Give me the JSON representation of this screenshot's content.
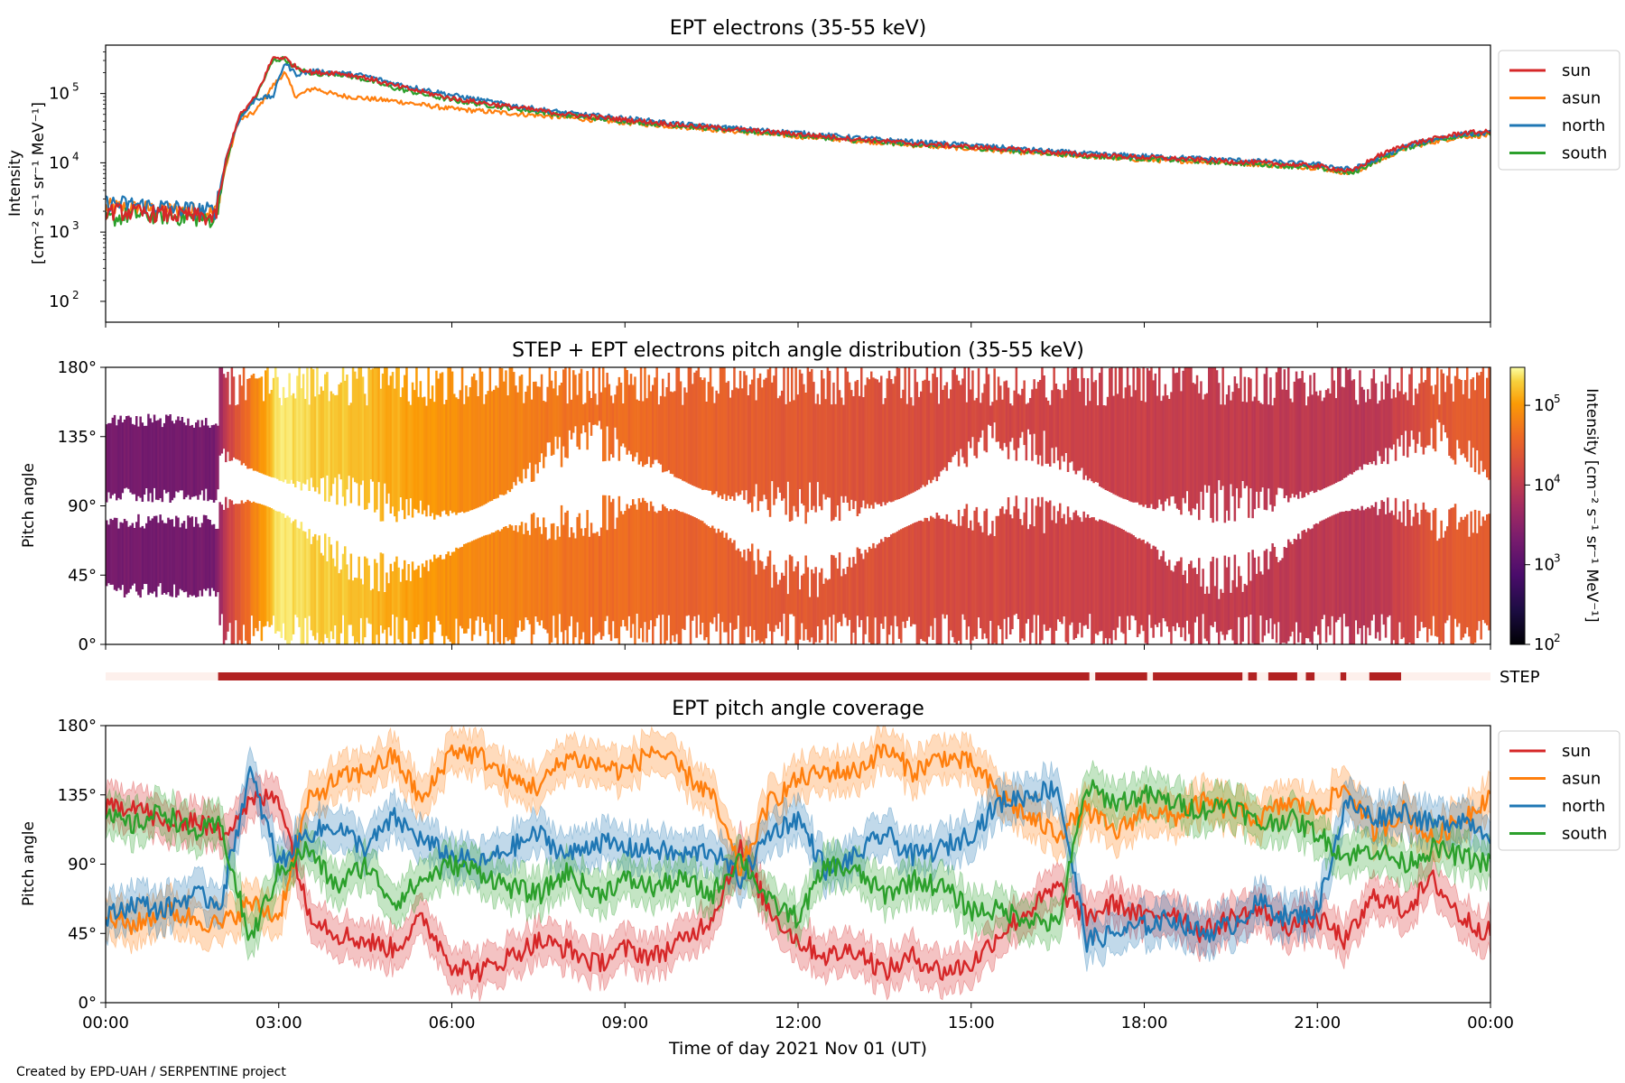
{
  "figure": {
    "credit": "Created by EPD-UAH / SERPENTINE project",
    "xlabel": "Time of day 2021 Nov 01 (UT)",
    "xticks": [
      "00:00",
      "03:00",
      "06:00",
      "09:00",
      "12:00",
      "15:00",
      "18:00",
      "21:00",
      "00:00"
    ]
  },
  "chart_data": [
    {
      "type": "line",
      "title": "EPT electrons (35-55 keV)",
      "ylabel_line1": "Intensity",
      "ylabel_line2": "[cm⁻² s⁻¹ sr⁻¹ MeV⁻¹]",
      "yscale": "log",
      "ylim": [
        50,
        500000
      ],
      "yticks": [
        {
          "value": 100,
          "base": "10",
          "exp": "2"
        },
        {
          "value": 1000,
          "base": "10",
          "exp": "3"
        },
        {
          "value": 10000,
          "base": "10",
          "exp": "4"
        },
        {
          "value": 100000,
          "base": "10",
          "exp": "5"
        }
      ],
      "xlim_hours": [
        0,
        24
      ],
      "legend_position": "outside-right-top",
      "series": [
        {
          "name": "sun",
          "color": "#d62728",
          "x": [
            0,
            0.5,
            1.0,
            1.5,
            1.9,
            2.1,
            2.3,
            2.6,
            2.9,
            3.1,
            3.3,
            3.6,
            4.0,
            4.5,
            5,
            6,
            7,
            8,
            9,
            10,
            11,
            12,
            13,
            14,
            15,
            16,
            17,
            18,
            19,
            20,
            21,
            21.6,
            22.0,
            22.5,
            23.0,
            23.5,
            24
          ],
          "y": [
            2000,
            1900,
            1800,
            1700,
            1600,
            12000,
            45000,
            90000,
            330000,
            330000,
            240000,
            200000,
            200000,
            170000,
            130000,
            85000,
            65000,
            50000,
            42000,
            35000,
            30000,
            26000,
            22000,
            19000,
            17000,
            15000,
            13000,
            12000,
            11000,
            10000,
            9000,
            7500,
            12000,
            18000,
            22000,
            27000,
            28000
          ]
        },
        {
          "name": "asun",
          "color": "#ff7f0e",
          "x": [
            0,
            0.5,
            1.0,
            1.5,
            1.9,
            2.1,
            2.3,
            2.6,
            2.9,
            3.1,
            3.3,
            3.6,
            4.0,
            4.5,
            5,
            6,
            7,
            8,
            9,
            10,
            11,
            12,
            13,
            14,
            15,
            16,
            17,
            18,
            19,
            20,
            21,
            21.6,
            22.0,
            22.5,
            23.0,
            23.5,
            24
          ],
          "y": [
            2300,
            2200,
            2100,
            2000,
            1900,
            10000,
            40000,
            55000,
            130000,
            200000,
            90000,
            120000,
            95000,
            85000,
            78000,
            60000,
            52000,
            45000,
            38000,
            33000,
            28000,
            24000,
            21000,
            18000,
            16000,
            14000,
            12500,
            11000,
            10500,
            9500,
            8500,
            7000,
            10000,
            16000,
            20000,
            24000,
            25000
          ]
        },
        {
          "name": "north",
          "color": "#1f77b4",
          "x": [
            0,
            0.5,
            1.0,
            1.5,
            1.9,
            2.1,
            2.3,
            2.6,
            2.9,
            3.1,
            3.3,
            3.6,
            4.0,
            4.5,
            5,
            6,
            7,
            8,
            9,
            10,
            11,
            12,
            13,
            14,
            15,
            16,
            17,
            18,
            19,
            20,
            21,
            21.6,
            22.0,
            22.5,
            23.0,
            23.5,
            24
          ],
          "y": [
            2600,
            2500,
            2300,
            2100,
            2000,
            13000,
            40000,
            85000,
            90000,
            280000,
            190000,
            210000,
            200000,
            180000,
            140000,
            95000,
            68000,
            52000,
            44000,
            36000,
            31000,
            27000,
            23000,
            20000,
            18000,
            15500,
            13500,
            12500,
            11500,
            10500,
            9500,
            8000,
            11000,
            17000,
            22000,
            26000,
            27000
          ]
        },
        {
          "name": "south",
          "color": "#2ca02c",
          "x": [
            0,
            0.5,
            1.0,
            1.5,
            1.9,
            2.1,
            2.3,
            2.6,
            2.9,
            3.1,
            3.3,
            3.6,
            4.0,
            4.5,
            5,
            6,
            7,
            8,
            9,
            10,
            11,
            12,
            13,
            14,
            15,
            16,
            17,
            18,
            19,
            20,
            21,
            21.6,
            22.0,
            22.5,
            23.0,
            23.5,
            24
          ],
          "y": [
            1500,
            1800,
            1700,
            1600,
            1500,
            11000,
            42000,
            88000,
            300000,
            320000,
            230000,
            190000,
            195000,
            160000,
            120000,
            80000,
            62000,
            48000,
            40000,
            34000,
            29000,
            25000,
            21000,
            18500,
            16500,
            14500,
            12500,
            11500,
            10500,
            9500,
            8500,
            7000,
            10500,
            16000,
            21000,
            25000,
            26000
          ]
        }
      ]
    },
    {
      "type": "heatmap",
      "title": "STEP + EPT electrons pitch angle distribution (35-55 keV)",
      "ylabel": "Pitch angle",
      "ylim": [
        0,
        180
      ],
      "yticks": [
        "0°",
        "45°",
        "90°",
        "135°",
        "180°"
      ],
      "xlim_hours": [
        0,
        24
      ],
      "colormap": "inferno",
      "colorbar": {
        "label": "Intensity [cm⁻² s⁻¹ sr⁻¹ MeV⁻¹]",
        "scale": "log",
        "range": [
          100,
          300000
        ],
        "ticks": [
          {
            "value": 100,
            "base": "10",
            "exp": "2"
          },
          {
            "value": 1000,
            "base": "10",
            "exp": "3"
          },
          {
            "value": 10000,
            "base": "10",
            "exp": "4"
          },
          {
            "value": 100000,
            "base": "10",
            "exp": "5"
          }
        ]
      },
      "intensity_profile": {
        "x": [
          0,
          1.9,
          2.1,
          2.5,
          3.0,
          3.5,
          4.0,
          5,
          6,
          7,
          8,
          9,
          10,
          11,
          12,
          13,
          14,
          15,
          16,
          17,
          18,
          19,
          20,
          21,
          22,
          23,
          24
        ],
        "y": [
          2000,
          1900,
          12000,
          50000,
          250000,
          200000,
          180000,
          130000,
          85000,
          65000,
          50000,
          42000,
          35000,
          30000,
          26000,
          22000,
          19000,
          17000,
          15000,
          13000,
          12000,
          11000,
          10000,
          9000,
          8000,
          25000,
          28000
        ]
      },
      "ept_only_interval_hours": [
        0,
        1.95
      ],
      "ept_only_bands_deg": [
        [
          35,
          80
        ],
        [
          97,
          145
        ]
      ]
    },
    {
      "type": "bar",
      "label": "STEP",
      "description_color": "#b22222",
      "empty_color": "#fdf0ec",
      "xlim_hours": [
        0,
        24
      ],
      "coverage_intervals_hours": [
        [
          1.95,
          17.05
        ],
        [
          17.15,
          18.05
        ],
        [
          18.15,
          19.7
        ],
        [
          19.8,
          19.95
        ],
        [
          20.15,
          20.65
        ],
        [
          20.8,
          20.95
        ],
        [
          21.4,
          21.5
        ],
        [
          21.9,
          22.45
        ],
        [
          24.0,
          24.0
        ]
      ]
    },
    {
      "type": "line",
      "title": "EPT pitch angle coverage",
      "ylabel": "Pitch angle",
      "ylim": [
        0,
        180
      ],
      "yticks": [
        "0°",
        "45°",
        "90°",
        "135°",
        "180°"
      ],
      "xlim_hours": [
        0,
        24
      ],
      "legend_position": "outside-right-top",
      "series": [
        {
          "name": "sun",
          "color": "#d62728",
          "x": [
            0,
            0.5,
            1.0,
            1.5,
            2.0,
            2.5,
            3.0,
            3.5,
            4.0,
            4.5,
            5.0,
            5.5,
            6.0,
            6.5,
            7.0,
            7.5,
            8.0,
            8.5,
            9.0,
            9.5,
            10.0,
            10.5,
            11.0,
            11.5,
            12.0,
            12.5,
            13.0,
            13.5,
            14.0,
            14.5,
            15.0,
            15.5,
            16.0,
            16.5,
            17.0,
            17.5,
            18.0,
            18.5,
            19.0,
            19.5,
            20.0,
            20.5,
            21.0,
            21.5,
            22.0,
            22.5,
            23.0,
            23.5,
            24.0
          ],
          "y": [
            125,
            130,
            115,
            120,
            110,
            130,
            135,
            60,
            45,
            40,
            35,
            55,
            25,
            20,
            30,
            40,
            35,
            25,
            35,
            30,
            40,
            55,
            100,
            60,
            40,
            30,
            35,
            20,
            30,
            20,
            25,
            45,
            60,
            75,
            55,
            65,
            55,
            60,
            45,
            55,
            60,
            50,
            55,
            40,
            70,
            60,
            80,
            55,
            45
          ]
        },
        {
          "name": "asun",
          "color": "#ff7f0e",
          "x": [
            0,
            0.5,
            1.0,
            1.5,
            2.0,
            2.5,
            3.0,
            3.5,
            4.0,
            4.5,
            5.0,
            5.5,
            6.0,
            6.5,
            7.0,
            7.5,
            8.0,
            8.5,
            9.0,
            9.5,
            10.0,
            10.5,
            11.0,
            11.5,
            12.0,
            12.5,
            13.0,
            13.5,
            14.0,
            14.5,
            15.0,
            15.5,
            16.0,
            16.5,
            17.0,
            17.5,
            18.0,
            18.5,
            19.0,
            19.5,
            20.0,
            20.5,
            21.0,
            21.5,
            22.0,
            22.5,
            23.0,
            23.5,
            24.0
          ],
          "y": [
            55,
            50,
            60,
            55,
            50,
            65,
            55,
            130,
            145,
            150,
            160,
            130,
            165,
            160,
            145,
            140,
            160,
            155,
            150,
            165,
            150,
            135,
            85,
            130,
            145,
            150,
            150,
            165,
            150,
            160,
            155,
            135,
            120,
            110,
            125,
            110,
            125,
            120,
            130,
            125,
            120,
            130,
            125,
            140,
            110,
            125,
            105,
            120,
            135
          ]
        },
        {
          "name": "north",
          "color": "#1f77b4",
          "x": [
            0,
            0.5,
            1.0,
            1.5,
            2.0,
            2.5,
            3.0,
            3.5,
            4.0,
            4.5,
            5.0,
            5.5,
            6.0,
            6.5,
            7.0,
            7.5,
            8.0,
            8.5,
            9.0,
            9.5,
            10.0,
            10.5,
            11.0,
            11.5,
            12.0,
            12.5,
            13.0,
            13.5,
            14.0,
            14.5,
            15.0,
            15.5,
            16.0,
            16.5,
            17.0,
            17.5,
            18.0,
            18.5,
            19.0,
            19.5,
            20.0,
            20.5,
            21.0,
            21.5,
            22.0,
            22.5,
            23.0,
            23.5,
            24.0
          ],
          "y": [
            55,
            65,
            60,
            70,
            65,
            150,
            90,
            110,
            115,
            100,
            120,
            105,
            95,
            90,
            100,
            110,
            95,
            105,
            100,
            100,
            95,
            100,
            80,
            110,
            120,
            85,
            95,
            110,
            95,
            100,
            110,
            130,
            135,
            140,
            40,
            45,
            50,
            55,
            45,
            50,
            65,
            55,
            60,
            130,
            120,
            125,
            115,
            120,
            110
          ]
        },
        {
          "name": "south",
          "color": "#2ca02c",
          "x": [
            0,
            0.5,
            1.0,
            1.5,
            2.0,
            2.5,
            3.0,
            3.5,
            4.0,
            4.5,
            5.0,
            5.5,
            6.0,
            6.5,
            7.0,
            7.5,
            8.0,
            8.5,
            9.0,
            9.5,
            10.0,
            10.5,
            11.0,
            11.5,
            12.0,
            12.5,
            13.0,
            13.5,
            14.0,
            14.5,
            15.0,
            15.5,
            16.0,
            16.5,
            17.0,
            17.5,
            18.0,
            18.5,
            19.0,
            19.5,
            20.0,
            20.5,
            21.0,
            21.5,
            22.0,
            22.5,
            23.0,
            23.5,
            24.0
          ],
          "y": [
            120,
            115,
            125,
            110,
            115,
            40,
            85,
            100,
            75,
            90,
            65,
            80,
            90,
            85,
            75,
            70,
            85,
            70,
            80,
            75,
            80,
            70,
            95,
            65,
            55,
            90,
            85,
            70,
            80,
            75,
            60,
            60,
            55,
            50,
            140,
            130,
            135,
            130,
            125,
            130,
            115,
            120,
            110,
            95,
            100,
            90,
            100,
            95,
            90
          ]
        }
      ]
    }
  ]
}
